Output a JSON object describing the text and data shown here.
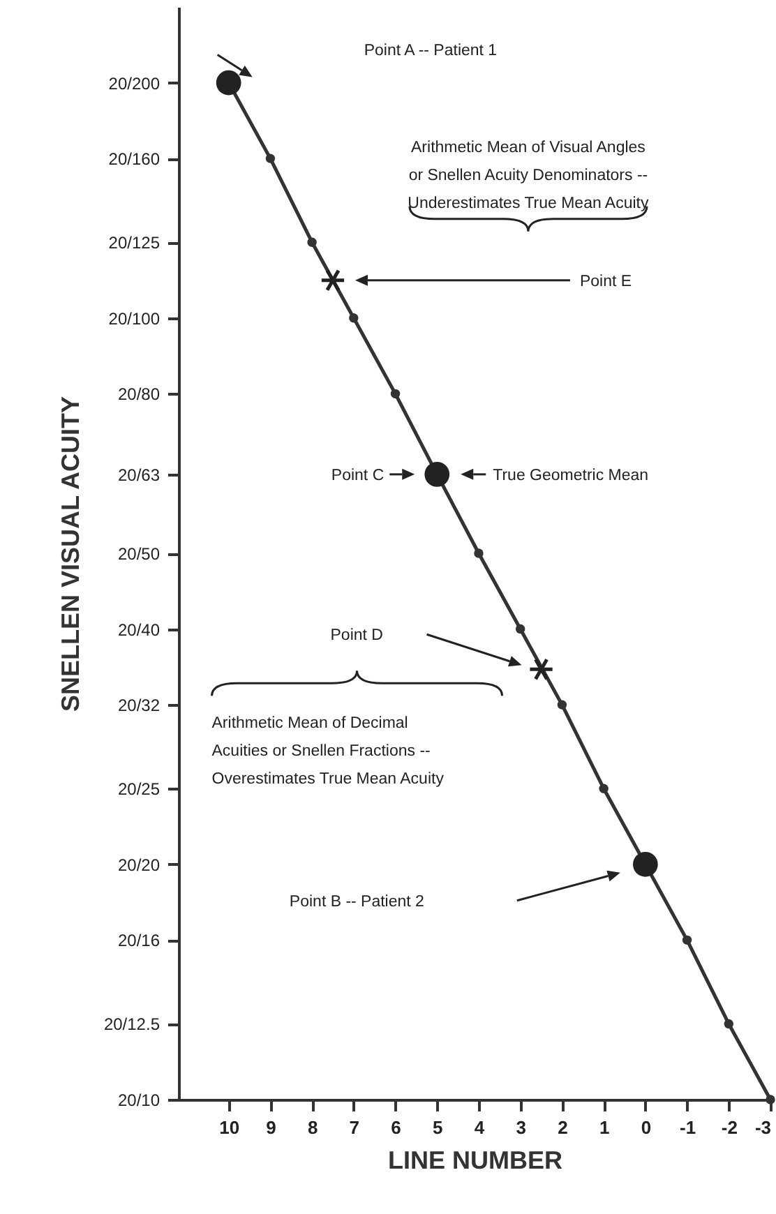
{
  "chart_data": {
    "type": "line",
    "xlabel": "LINE NUMBER",
    "ylabel": "SNELLEN VISUAL ACUITY",
    "log": "y",
    "xlim": [
      11.2,
      -3
    ],
    "xticks": [
      10,
      9,
      8,
      7,
      6,
      5,
      4,
      3,
      2,
      1,
      0,
      -1,
      -2,
      -3
    ],
    "ylim": [
      2,
      0.08
    ],
    "yticks": [
      {
        "value": 0.1,
        "label": "20/200"
      },
      {
        "value": 0.125,
        "label": "20/160"
      },
      {
        "value": 0.16,
        "label": "20/125"
      },
      {
        "value": 0.2,
        "label": "20/100"
      },
      {
        "value": 0.25,
        "label": "20/80"
      },
      {
        "value": 0.317,
        "label": "20/63"
      },
      {
        "value": 0.4,
        "label": "20/50"
      },
      {
        "value": 0.5,
        "label": "20/40"
      },
      {
        "value": 0.625,
        "label": "20/32"
      },
      {
        "value": 0.8,
        "label": "20/25"
      },
      {
        "value": 1,
        "label": "20/20"
      },
      {
        "value": 1.25,
        "label": "20/16"
      },
      {
        "value": 1.6,
        "label": "20/12.5"
      },
      {
        "value": 2,
        "label": "20/10"
      }
    ],
    "grid": false,
    "series": [
      {
        "type": "line",
        "marker": "circle",
        "color": "#333333",
        "x": [
          10,
          9,
          8,
          7,
          6,
          5,
          4,
          3,
          2,
          1,
          0,
          -1,
          -2,
          -3
        ],
        "values": [
          0.1,
          0.125,
          0.16,
          0.2,
          0.25,
          0.317,
          0.4,
          0.5,
          0.625,
          0.8,
          1,
          1.25,
          1.6,
          2
        ]
      },
      {
        "type": "scatter",
        "marker": "circle",
        "color": "#222222",
        "x": [
          10,
          5,
          0
        ],
        "values": [
          0.1,
          0.317,
          1
        ]
      },
      {
        "type": "scatter",
        "marker": "cross",
        "color": "#222222",
        "x": [
          7.5,
          2.5
        ],
        "values": [
          0.179,
          0.563
        ]
      }
    ],
    "annotations": [
      "Point A -- Patient 1",
      "Arithmetic Mean of Visual Angles or Snellen Acuity Denominators -- Underestimates True Mean Acuity",
      "Point E",
      "Point C",
      "True Geometric Mean",
      "Point D",
      "Arithmetic Mean of Decimal Acuities or Snellen Fractions -- Overestimates True Mean Acuity",
      "Point B -- Patient 2"
    ]
  }
}
